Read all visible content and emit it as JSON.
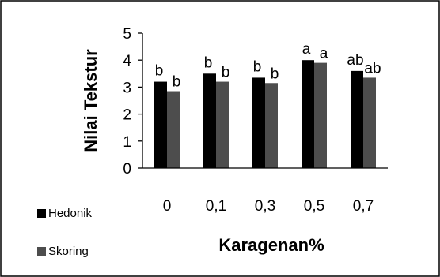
{
  "chart_data": {
    "type": "bar",
    "categories": [
      "0",
      "0,1",
      "0,3",
      "0,5",
      "0,7"
    ],
    "series": [
      {
        "name": "Hedonik",
        "values": [
          3.2,
          3.5,
          3.35,
          4.0,
          3.6
        ],
        "labels": [
          "b",
          "b",
          "b",
          "a",
          "ab"
        ],
        "color": "#000000"
      },
      {
        "name": "Skoring",
        "values": [
          2.85,
          3.2,
          3.15,
          3.9,
          3.35
        ],
        "labels": [
          "b",
          "b",
          "b",
          "a",
          "ab"
        ],
        "color": "#4d4d4d"
      }
    ],
    "title": "",
    "xlabel": "Karagenan%",
    "ylabel": "Nilai Tekstur",
    "ylim": [
      0,
      5
    ],
    "yticks": [
      "0",
      "1",
      "2",
      "3",
      "4",
      "5"
    ],
    "grid": false,
    "legend_position": "bottom-left"
  }
}
